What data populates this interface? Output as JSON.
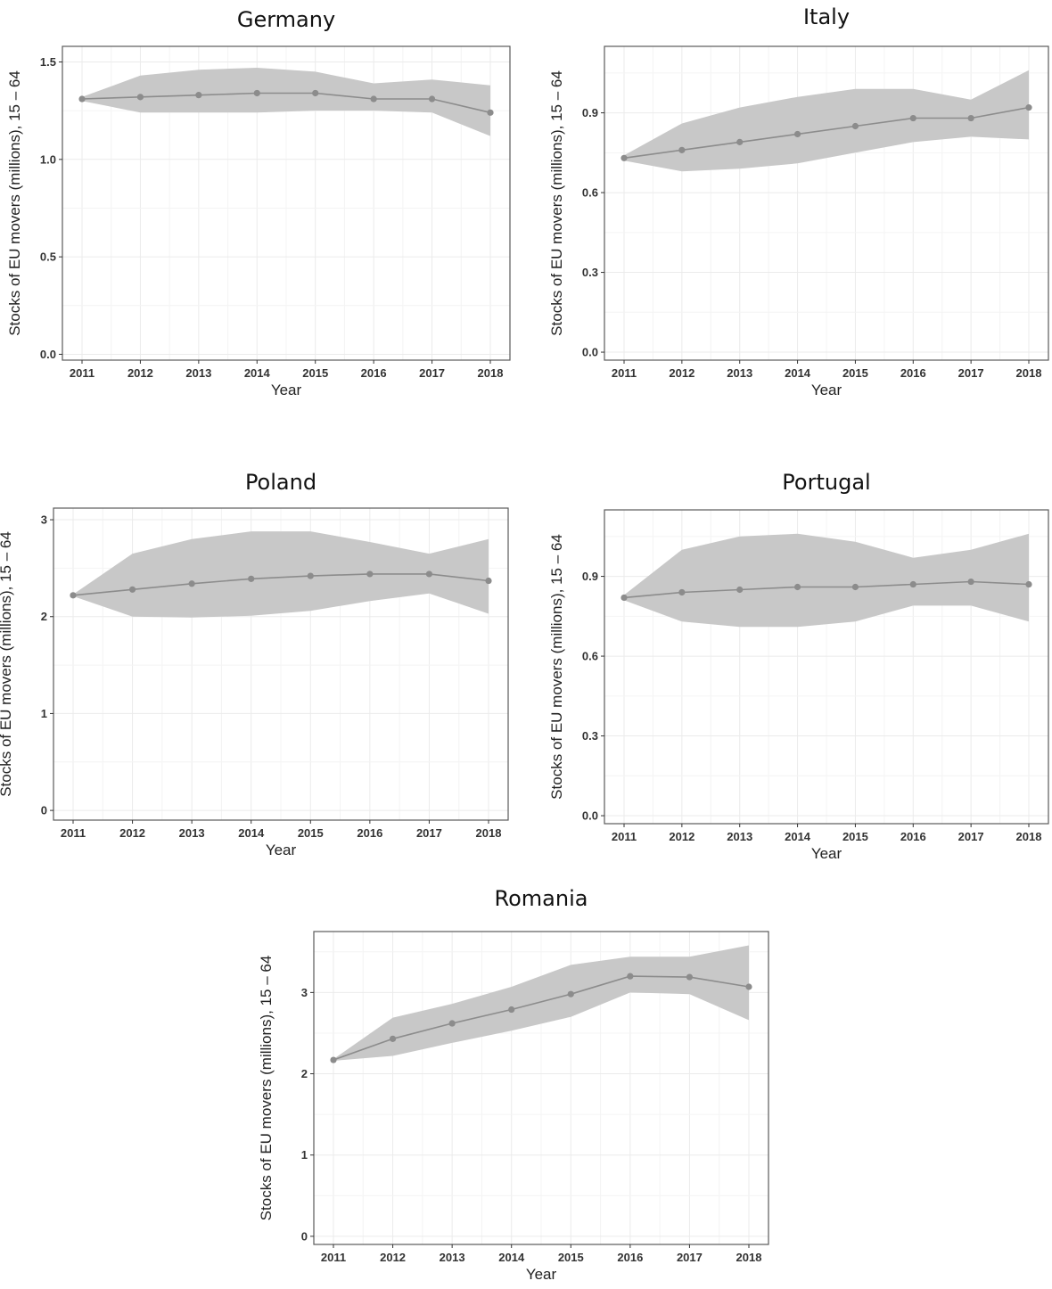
{
  "chart_data": [
    {
      "type": "line",
      "title": "Germany",
      "xlabel": "Year",
      "ylabel": "Stocks of EU movers (millions), 15 – 64",
      "x": [
        2011,
        2012,
        2013,
        2014,
        2015,
        2016,
        2017,
        2018
      ],
      "y": [
        1.31,
        1.32,
        1.33,
        1.34,
        1.34,
        1.31,
        1.31,
        1.24
      ],
      "lower": [
        1.3,
        1.24,
        1.24,
        1.24,
        1.25,
        1.25,
        1.24,
        1.12
      ],
      "upper": [
        1.32,
        1.43,
        1.46,
        1.47,
        1.45,
        1.39,
        1.41,
        1.38
      ],
      "ylim": [
        -0.03,
        1.58
      ],
      "yticks": [
        0.0,
        0.5,
        1.0,
        1.5
      ],
      "ytick_labels": [
        "0.0",
        "0.5",
        "1.0",
        "1.5"
      ],
      "grid": true
    },
    {
      "type": "line",
      "title": "Italy",
      "xlabel": "Year",
      "ylabel": "Stocks of EU movers (millions), 15 – 64",
      "x": [
        2011,
        2012,
        2013,
        2014,
        2015,
        2016,
        2017,
        2018
      ],
      "y": [
        0.73,
        0.76,
        0.79,
        0.82,
        0.85,
        0.88,
        0.88,
        0.92
      ],
      "lower": [
        0.72,
        0.68,
        0.69,
        0.71,
        0.75,
        0.79,
        0.81,
        0.8
      ],
      "upper": [
        0.74,
        0.86,
        0.92,
        0.96,
        0.99,
        0.99,
        0.95,
        1.06
      ],
      "ylim": [
        -0.03,
        1.15
      ],
      "yticks": [
        0.0,
        0.3,
        0.6,
        0.9
      ],
      "ytick_labels": [
        "0.0",
        "0.3",
        "0.6",
        "0.9"
      ],
      "grid": true
    },
    {
      "type": "line",
      "title": "Poland",
      "xlabel": "Year",
      "ylabel": "Stocks of EU movers (millions), 15 – 64",
      "x": [
        2011,
        2012,
        2013,
        2014,
        2015,
        2016,
        2017,
        2018
      ],
      "y": [
        2.22,
        2.28,
        2.34,
        2.39,
        2.42,
        2.44,
        2.44,
        2.37
      ],
      "lower": [
        2.21,
        2.0,
        1.99,
        2.01,
        2.06,
        2.16,
        2.24,
        2.03
      ],
      "upper": [
        2.23,
        2.65,
        2.8,
        2.88,
        2.88,
        2.77,
        2.65,
        2.8
      ],
      "ylim": [
        -0.1,
        3.12
      ],
      "yticks": [
        0,
        1,
        2,
        3
      ],
      "ytick_labels": [
        "0",
        "1",
        "2",
        "3"
      ],
      "grid": true
    },
    {
      "type": "line",
      "title": "Portugal",
      "xlabel": "Year",
      "ylabel": "Stocks of EU movers (millions), 15 – 64",
      "x": [
        2011,
        2012,
        2013,
        2014,
        2015,
        2016,
        2017,
        2018
      ],
      "y": [
        0.82,
        0.84,
        0.85,
        0.86,
        0.86,
        0.87,
        0.88,
        0.87
      ],
      "lower": [
        0.81,
        0.73,
        0.71,
        0.71,
        0.73,
        0.79,
        0.79,
        0.73
      ],
      "upper": [
        0.83,
        1.0,
        1.05,
        1.06,
        1.03,
        0.97,
        1.0,
        1.06
      ],
      "ylim": [
        -0.03,
        1.15
      ],
      "yticks": [
        0.0,
        0.3,
        0.6,
        0.9
      ],
      "ytick_labels": [
        "0.0",
        "0.3",
        "0.6",
        "0.9"
      ],
      "grid": true
    },
    {
      "type": "line",
      "title": "Romania",
      "xlabel": "Year",
      "ylabel": "Stocks of EU movers (millions), 15 – 64",
      "x": [
        2011,
        2012,
        2013,
        2014,
        2015,
        2016,
        2017,
        2018
      ],
      "y": [
        2.17,
        2.43,
        2.62,
        2.79,
        2.98,
        3.2,
        3.19,
        3.07
      ],
      "lower": [
        2.16,
        2.22,
        2.38,
        2.53,
        2.7,
        3.0,
        2.98,
        2.66
      ],
      "upper": [
        2.18,
        2.69,
        2.86,
        3.07,
        3.34,
        3.44,
        3.44,
        3.58
      ],
      "ylim": [
        -0.1,
        3.75
      ],
      "yticks": [
        0,
        1,
        2,
        3
      ],
      "ytick_labels": [
        "0",
        "1",
        "2",
        "3"
      ],
      "grid": true
    }
  ]
}
